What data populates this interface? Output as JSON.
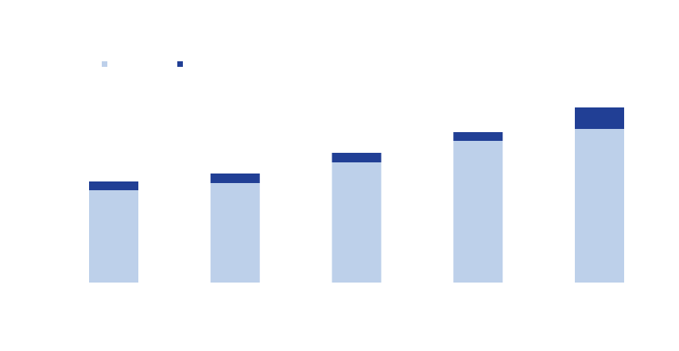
{
  "chart_data": {
    "type": "stacked_bar",
    "categories": [
      null,
      null,
      null,
      null,
      null
    ],
    "series": [
      {
        "color": "#bdd0ea",
        "values": [
          116,
          125,
          151,
          178,
          193
        ]
      },
      {
        "color": "#213f95",
        "values": [
          11,
          12,
          12,
          11,
          27
        ]
      }
    ]
  }
}
